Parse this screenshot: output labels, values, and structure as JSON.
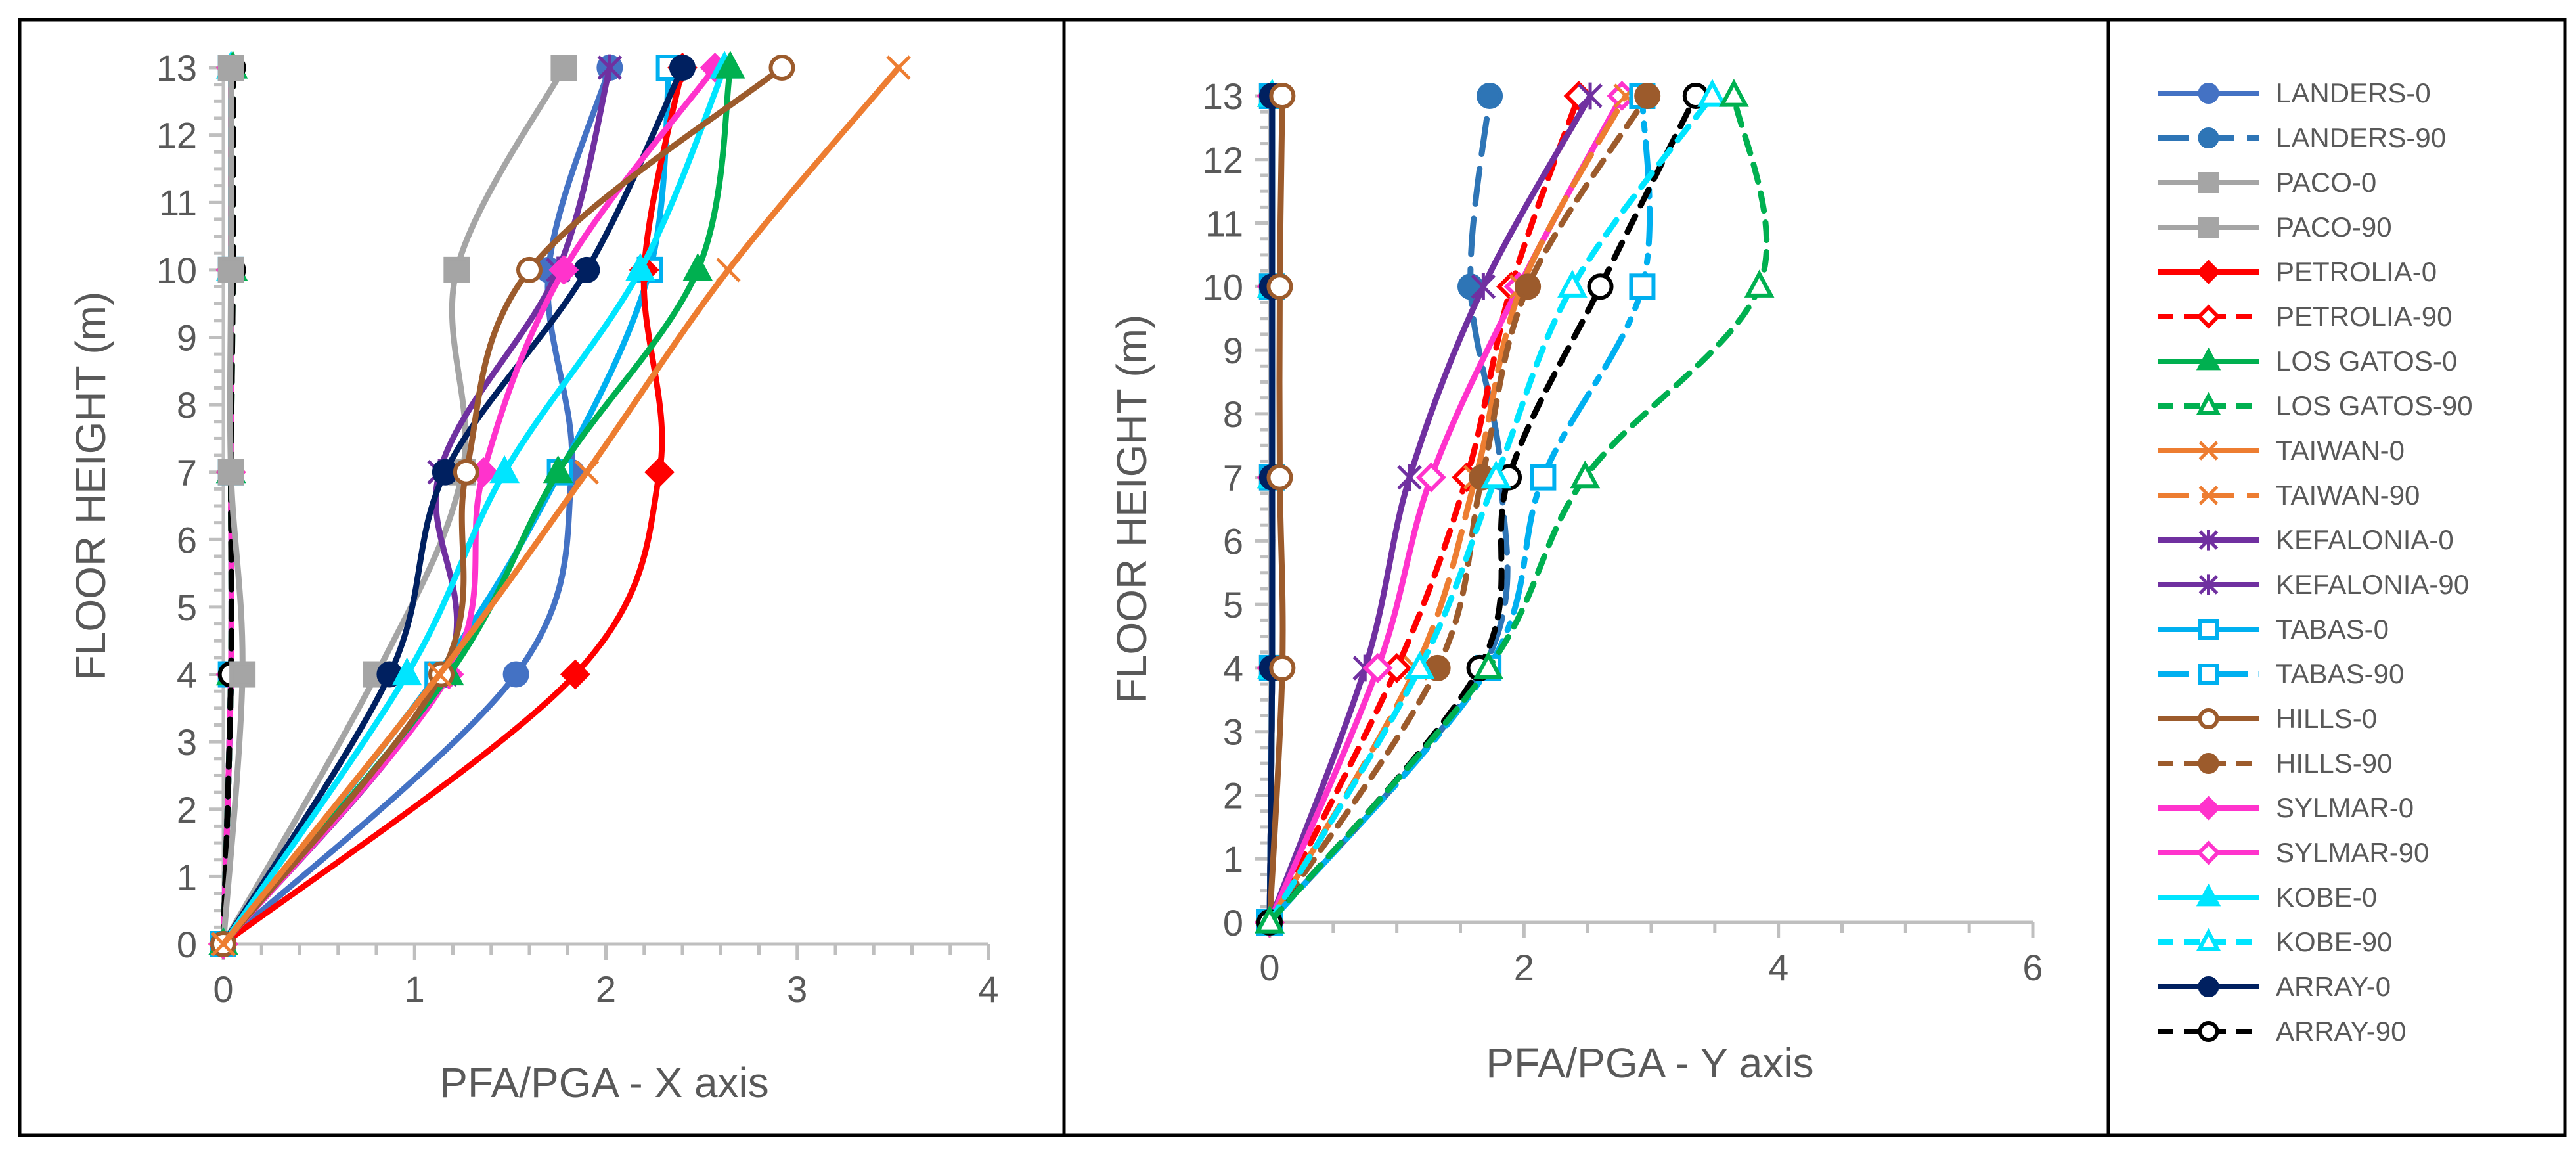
{
  "legend": [
    {
      "name": "LANDERS-0",
      "color": "#4472C4",
      "dash": "solid",
      "marker": "circle",
      "filled": true
    },
    {
      "name": "LANDERS-90",
      "color": "#2E75B6",
      "dash": "longdash",
      "marker": "circle",
      "filled": true
    },
    {
      "name": "PACO-0",
      "color": "#A5A5A5",
      "dash": "solid",
      "marker": "square",
      "filled": true
    },
    {
      "name": "PACO-90",
      "color": "#A5A5A5",
      "dash": "solid",
      "marker": "square",
      "filled": true
    },
    {
      "name": "PETROLIA-0",
      "color": "#FF0000",
      "dash": "solid",
      "marker": "diamond",
      "filled": true
    },
    {
      "name": "PETROLIA-90",
      "color": "#FF0000",
      "dash": "dash",
      "marker": "diamond",
      "filled": false
    },
    {
      "name": "LOS GATOS-0",
      "color": "#00B050",
      "dash": "solid",
      "marker": "triangle",
      "filled": true
    },
    {
      "name": "LOS GATOS-90",
      "color": "#00B050",
      "dash": "dash",
      "marker": "triangle",
      "filled": false
    },
    {
      "name": "TAIWAN-0",
      "color": "#ED7D31",
      "dash": "solid",
      "marker": "x",
      "filled": false
    },
    {
      "name": "TAIWAN-90",
      "color": "#ED7D31",
      "dash": "longdash",
      "marker": "x",
      "filled": false
    },
    {
      "name": "KEFALONIA-0",
      "color": "#7030A0",
      "dash": "solid",
      "marker": "star",
      "filled": false
    },
    {
      "name": "KEFALONIA-90",
      "color": "#7030A0",
      "dash": "solid",
      "marker": "star",
      "filled": false
    },
    {
      "name": "TABAS-0",
      "color": "#00B0F0",
      "dash": "solid",
      "marker": "square",
      "filled": false
    },
    {
      "name": "TABAS-90",
      "color": "#00B0F0",
      "dash": "dashdot",
      "marker": "square",
      "filled": false
    },
    {
      "name": "HILLS-0",
      "color": "#9C5B2C",
      "dash": "solid",
      "marker": "circle",
      "filled": false
    },
    {
      "name": "HILLS-90",
      "color": "#9C5B2C",
      "dash": "dash",
      "marker": "circle",
      "filled": true
    },
    {
      "name": "SYLMAR-0",
      "color": "#FF33CC",
      "dash": "solid",
      "marker": "diamond",
      "filled": true
    },
    {
      "name": "SYLMAR-90",
      "color": "#FF33CC",
      "dash": "solid",
      "marker": "diamond",
      "filled": false
    },
    {
      "name": "KOBE-0",
      "color": "#00E5FF",
      "dash": "solid",
      "marker": "triangle",
      "filled": true
    },
    {
      "name": "KOBE-90",
      "color": "#00E5FF",
      "dash": "dash",
      "marker": "triangle",
      "filled": false
    },
    {
      "name": "ARRAY-0",
      "color": "#002060",
      "dash": "solid",
      "marker": "circle",
      "filled": true
    },
    {
      "name": "ARRAY-90",
      "color": "#000000",
      "dash": "dash",
      "marker": "circle",
      "filled": false
    }
  ],
  "chart_data": [
    {
      "type": "line",
      "title": "",
      "xlabel": "PFA/PGA - X axis",
      "ylabel": "FLOOR HEIGHT (m)",
      "xlim": [
        0,
        4
      ],
      "ylim": [
        0,
        13
      ],
      "xticks": [
        "0",
        "1",
        "2",
        "3",
        "4"
      ],
      "yticks": [
        "0",
        "1",
        "2",
        "3",
        "4",
        "5",
        "6",
        "7",
        "8",
        "9",
        "10",
        "11",
        "12",
        "13"
      ],
      "y_points": [
        0,
        4,
        7,
        10,
        13
      ],
      "series": [
        {
          "name": "LANDERS-0",
          "x": [
            0,
            1.53,
            1.82,
            1.7,
            2.02
          ]
        },
        {
          "name": "LANDERS-90",
          "x": [
            0,
            0.04,
            0.04,
            0.04,
            0.04
          ]
        },
        {
          "name": "PACO-0",
          "x": [
            0,
            0.8,
            1.25,
            1.22,
            1.78
          ]
        },
        {
          "name": "PACO-90",
          "x": [
            0,
            0.1,
            0.04,
            0.04,
            0.04
          ]
        },
        {
          "name": "PETROLIA-0",
          "x": [
            0,
            1.84,
            2.28,
            2.2,
            2.4
          ]
        },
        {
          "name": "PETROLIA-90",
          "x": [
            0,
            0.04,
            0.04,
            0.04,
            0.04
          ]
        },
        {
          "name": "LOS GATOS-0",
          "x": [
            0,
            1.18,
            1.75,
            2.48,
            2.65
          ]
        },
        {
          "name": "LOS GATOS-90",
          "x": [
            0,
            0.04,
            0.04,
            0.05,
            0.05
          ]
        },
        {
          "name": "TAIWAN-0",
          "x": [
            0,
            1.13,
            1.9,
            2.64,
            3.53
          ]
        },
        {
          "name": "TAIWAN-90",
          "x": [
            0,
            0.04,
            0.04,
            0.04,
            0.04
          ]
        },
        {
          "name": "KEFALONIA-0",
          "x": [
            0,
            1.16,
            1.13,
            1.75,
            2.02
          ]
        },
        {
          "name": "KEFALONIA-90",
          "x": [
            0,
            0.04,
            0.04,
            0.04,
            0.04
          ]
        },
        {
          "name": "TABAS-0",
          "x": [
            0,
            1.12,
            1.76,
            2.23,
            2.33
          ]
        },
        {
          "name": "TABAS-90",
          "x": [
            0,
            0.04,
            0.04,
            0.04,
            0.04
          ]
        },
        {
          "name": "HILLS-0",
          "x": [
            0,
            1.14,
            1.27,
            1.6,
            2.92
          ]
        },
        {
          "name": "HILLS-90",
          "x": [
            0,
            0.04,
            0.04,
            0.04,
            0.04
          ]
        },
        {
          "name": "SYLMAR-0",
          "x": [
            0,
            1.18,
            1.36,
            1.78,
            2.57
          ]
        },
        {
          "name": "SYLMAR-90",
          "x": [
            0,
            0.04,
            0.04,
            0.04,
            0.04
          ]
        },
        {
          "name": "KOBE-0",
          "x": [
            0,
            0.96,
            1.47,
            2.18,
            2.62
          ]
        },
        {
          "name": "KOBE-90",
          "x": [
            0,
            0.04,
            0.04,
            0.04,
            0.04
          ]
        },
        {
          "name": "ARRAY-0",
          "x": [
            0,
            0.87,
            1.16,
            1.9,
            2.4
          ]
        },
        {
          "name": "ARRAY-90",
          "x": [
            0,
            0.04,
            0.04,
            0.05,
            0.05
          ]
        }
      ]
    },
    {
      "type": "line",
      "title": "",
      "xlabel": "PFA/PGA - Y axis",
      "ylabel": "FLOOR HEIGHT (m)",
      "xlim": [
        0,
        6
      ],
      "ylim": [
        0,
        13
      ],
      "xticks": [
        "0",
        "2",
        "4",
        "6"
      ],
      "yticks": [
        "0",
        "1",
        "2",
        "3",
        "4",
        "5",
        "6",
        "7",
        "8",
        "9",
        "10",
        "11",
        "12",
        "13"
      ],
      "y_points": [
        0,
        4,
        7,
        10,
        13
      ],
      "series": [
        {
          "name": "LANDERS-0",
          "x": [
            0,
            0.02,
            0.02,
            0.02,
            0.02
          ]
        },
        {
          "name": "LANDERS-90",
          "x": [
            0,
            1.68,
            1.82,
            1.58,
            1.73
          ]
        },
        {
          "name": "PACO-0",
          "x": [
            0,
            0.02,
            0.02,
            0.02,
            0.02
          ]
        },
        {
          "name": "PACO-90",
          "x": [
            0,
            0.02,
            0.02,
            0.02,
            0.02
          ]
        },
        {
          "name": "PETROLIA-0",
          "x": [
            0,
            0.02,
            0.02,
            0.02,
            0.02
          ]
        },
        {
          "name": "PETROLIA-90",
          "x": [
            0,
            1.0,
            1.55,
            1.9,
            2.43
          ]
        },
        {
          "name": "LOS GATOS-0",
          "x": [
            0,
            0.02,
            0.02,
            0.02,
            0.02
          ]
        },
        {
          "name": "LOS GATOS-90",
          "x": [
            0,
            1.72,
            2.48,
            3.85,
            3.65
          ]
        },
        {
          "name": "TAIWAN-0",
          "x": [
            0,
            0.02,
            0.02,
            0.02,
            0.02
          ]
        },
        {
          "name": "TAIWAN-90",
          "x": [
            0,
            1.15,
            1.62,
            1.98,
            2.8
          ]
        },
        {
          "name": "KEFALONIA-0",
          "x": [
            0,
            0.02,
            0.02,
            0.02,
            0.02
          ]
        },
        {
          "name": "KEFALONIA-90",
          "x": [
            0,
            0.75,
            1.1,
            1.68,
            2.52
          ]
        },
        {
          "name": "TABAS-0",
          "x": [
            0,
            0.02,
            0.02,
            0.02,
            0.02
          ]
        },
        {
          "name": "TABAS-90",
          "x": [
            0,
            1.72,
            2.15,
            2.93,
            2.93
          ]
        },
        {
          "name": "HILLS-0",
          "x": [
            0,
            0.1,
            0.08,
            0.08,
            0.1
          ]
        },
        {
          "name": "HILLS-90",
          "x": [
            0,
            1.32,
            1.67,
            2.03,
            2.97
          ]
        },
        {
          "name": "SYLMAR-0",
          "x": [
            0,
            0.02,
            0.02,
            0.02,
            0.02
          ]
        },
        {
          "name": "SYLMAR-90",
          "x": [
            0,
            0.85,
            1.27,
            1.96,
            2.77
          ]
        },
        {
          "name": "KOBE-0",
          "x": [
            0,
            0.02,
            0.02,
            0.02,
            0.02
          ]
        },
        {
          "name": "KOBE-90",
          "x": [
            0,
            1.18,
            1.78,
            2.38,
            3.48
          ]
        },
        {
          "name": "ARRAY-0",
          "x": [
            0,
            0.02,
            0.02,
            0.02,
            0.02
          ]
        },
        {
          "name": "ARRAY-90",
          "x": [
            0,
            1.65,
            1.88,
            2.6,
            3.35
          ]
        }
      ]
    }
  ]
}
